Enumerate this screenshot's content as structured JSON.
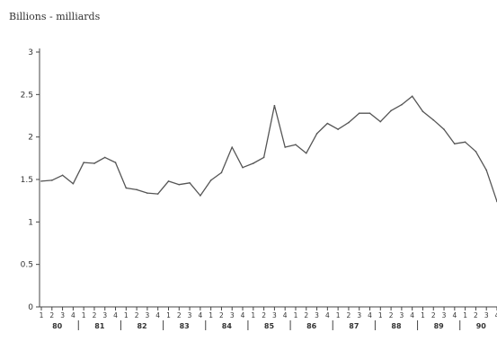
{
  "chart_data": {
    "type": "line",
    "title": "",
    "ylabel": "Billions - milliards",
    "xlabel": "",
    "ylim": [
      0,
      3
    ],
    "yticks": [
      "0",
      "0.5",
      "1",
      "1.5",
      "2",
      "2.5",
      "3"
    ],
    "quarter_labels": [
      "1",
      "2",
      "3",
      "4"
    ],
    "years": [
      "80",
      "81",
      "82",
      "83",
      "84",
      "85",
      "86",
      "87",
      "88",
      "89",
      "90"
    ],
    "grid": false,
    "series": [
      {
        "name": "",
        "values": [
          1.48,
          1.49,
          1.55,
          1.45,
          1.7,
          1.69,
          1.76,
          1.7,
          1.4,
          1.38,
          1.34,
          1.33,
          1.48,
          1.44,
          1.46,
          1.31,
          1.49,
          1.58,
          1.88,
          1.64,
          1.69,
          1.76,
          2.37,
          1.88,
          1.91,
          1.81,
          2.04,
          2.16,
          2.09,
          2.17,
          2.28,
          2.28,
          2.18,
          2.31,
          2.38,
          2.48,
          2.3,
          2.2,
          2.09,
          1.92,
          1.94,
          1.83,
          1.61,
          1.24
        ]
      }
    ]
  }
}
